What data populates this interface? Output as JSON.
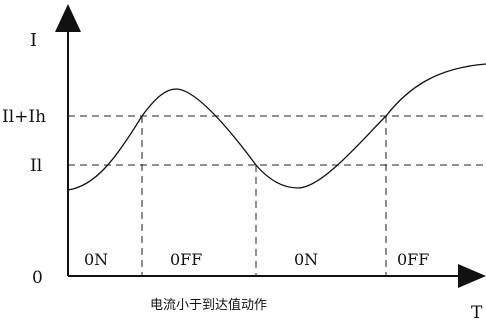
{
  "axes": {
    "y_label": "I",
    "x_label": "T",
    "origin_label": "0"
  },
  "levels": {
    "upper_label": "Il+Ih",
    "lower_label": "Il"
  },
  "regions": [
    {
      "label": "0N"
    },
    {
      "label": "0FF"
    },
    {
      "label": "0N"
    },
    {
      "label": "0FF"
    }
  ],
  "caption": "电流小于到达值动作"
}
